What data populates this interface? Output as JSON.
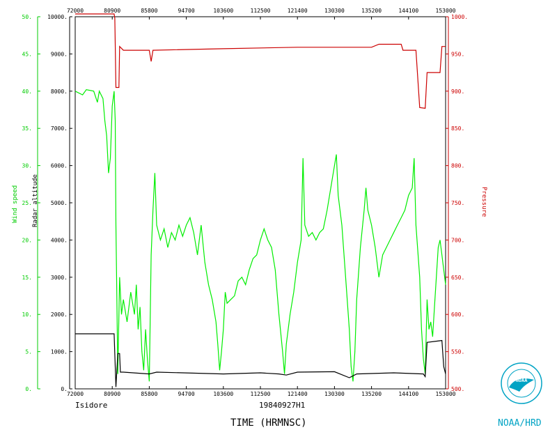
{
  "chart_data": {
    "type": "line",
    "storm_name": "Isidore",
    "flight_id": "19840927H1",
    "xlabel": "TIME (HRMNSC)",
    "logo_text": "NOAA/HRD",
    "logo_seal_text": "NOAA",
    "x_ticks_bottom": [
      "72000",
      "80900",
      "85800",
      "94700",
      "103600",
      "112500",
      "121400",
      "130300",
      "135200",
      "144100",
      "153000"
    ],
    "x_ticks_top": [
      "72000",
      "80900",
      "85800",
      "94700",
      "103600",
      "112500",
      "121400",
      "130300",
      "135200",
      "144100",
      "153000"
    ],
    "axes": {
      "wind_speed": {
        "label": "Wind speed",
        "range": [
          0,
          50
        ],
        "ticks": [
          "0.",
          "5.",
          "10.",
          "15.",
          "20.",
          "25.",
          "30.",
          "35.",
          "40.",
          "45.",
          "50."
        ]
      },
      "radar_altitude": {
        "label": "Radar altitude",
        "range": [
          0,
          10000
        ],
        "ticks": [
          "0.",
          "1000.",
          "2000.",
          "3000.",
          "4000.",
          "5000.",
          "6000.",
          "7000.",
          "8000.",
          "9000.",
          "10000."
        ]
      },
      "pressure": {
        "label": "Pressure",
        "range": [
          500,
          1000
        ],
        "ticks": [
          "500.",
          "550.",
          "600.",
          "650.",
          "700.",
          "750.",
          "800.",
          "850.",
          "900.",
          "950.",
          "1000."
        ]
      }
    },
    "series": [
      {
        "name": "Wind speed",
        "color": "#00ee00",
        "axis": "wind_speed",
        "points": [
          [
            0.0,
            40.0
          ],
          [
            0.02,
            39.5
          ],
          [
            0.03,
            40.2
          ],
          [
            0.05,
            40.0
          ],
          [
            0.06,
            38.5
          ],
          [
            0.065,
            40.0
          ],
          [
            0.075,
            39.0
          ],
          [
            0.08,
            36.0
          ],
          [
            0.085,
            34.0
          ],
          [
            0.09,
            29.0
          ],
          [
            0.095,
            31.0
          ],
          [
            0.1,
            38.0
          ],
          [
            0.105,
            40.0
          ],
          [
            0.108,
            36.0
          ],
          [
            0.11,
            22.0
          ],
          [
            0.115,
            2.0
          ],
          [
            0.118,
            10.0
          ],
          [
            0.12,
            15.0
          ],
          [
            0.125,
            10.0
          ],
          [
            0.13,
            12.0
          ],
          [
            0.14,
            9.0
          ],
          [
            0.15,
            13.0
          ],
          [
            0.16,
            10.0
          ],
          [
            0.165,
            14.0
          ],
          [
            0.17,
            8.0
          ],
          [
            0.175,
            11.0
          ],
          [
            0.18,
            5.0
          ],
          [
            0.185,
            2.5
          ],
          [
            0.19,
            8.0
          ],
          [
            0.195,
            4.0
          ],
          [
            0.2,
            1.0
          ],
          [
            0.205,
            18.0
          ],
          [
            0.21,
            24.0
          ],
          [
            0.215,
            29.0
          ],
          [
            0.22,
            22.0
          ],
          [
            0.23,
            20.0
          ],
          [
            0.24,
            21.5
          ],
          [
            0.25,
            19.0
          ],
          [
            0.26,
            21.0
          ],
          [
            0.27,
            20.0
          ],
          [
            0.28,
            22.0
          ],
          [
            0.29,
            20.5
          ],
          [
            0.3,
            22.0
          ],
          [
            0.31,
            23.0
          ],
          [
            0.32,
            21.0
          ],
          [
            0.33,
            18.0
          ],
          [
            0.34,
            22.0
          ],
          [
            0.35,
            17.0
          ],
          [
            0.36,
            14.0
          ],
          [
            0.37,
            12.0
          ],
          [
            0.38,
            9.0
          ],
          [
            0.385,
            6.0
          ],
          [
            0.39,
            2.5
          ],
          [
            0.395,
            5.0
          ],
          [
            0.4,
            8.0
          ],
          [
            0.405,
            13.0
          ],
          [
            0.41,
            11.5
          ],
          [
            0.42,
            12.0
          ],
          [
            0.43,
            12.5
          ],
          [
            0.44,
            14.5
          ],
          [
            0.45,
            15.0
          ],
          [
            0.46,
            14.0
          ],
          [
            0.47,
            16.0
          ],
          [
            0.48,
            17.5
          ],
          [
            0.49,
            18.0
          ],
          [
            0.5,
            20.0
          ],
          [
            0.51,
            21.5
          ],
          [
            0.52,
            20.0
          ],
          [
            0.53,
            19.0
          ],
          [
            0.54,
            16.0
          ],
          [
            0.55,
            10.0
          ],
          [
            0.56,
            5.0
          ],
          [
            0.565,
            2.0
          ],
          [
            0.57,
            6.0
          ],
          [
            0.58,
            10.0
          ],
          [
            0.59,
            13.0
          ],
          [
            0.6,
            17.0
          ],
          [
            0.61,
            20.0
          ],
          [
            0.615,
            31.0
          ],
          [
            0.62,
            22.0
          ],
          [
            0.63,
            20.5
          ],
          [
            0.64,
            21.0
          ],
          [
            0.65,
            20.0
          ],
          [
            0.66,
            21.0
          ],
          [
            0.67,
            21.5
          ],
          [
            0.68,
            24.0
          ],
          [
            0.69,
            27.0
          ],
          [
            0.7,
            30.0
          ],
          [
            0.705,
            31.5
          ],
          [
            0.71,
            26.0
          ],
          [
            0.72,
            22.0
          ],
          [
            0.73,
            15.0
          ],
          [
            0.74,
            8.0
          ],
          [
            0.745,
            3.0
          ],
          [
            0.75,
            1.0
          ],
          [
            0.755,
            5.0
          ],
          [
            0.76,
            12.0
          ],
          [
            0.77,
            19.0
          ],
          [
            0.78,
            24.0
          ],
          [
            0.785,
            27.0
          ],
          [
            0.79,
            24.0
          ],
          [
            0.8,
            22.0
          ],
          [
            0.81,
            19.0
          ],
          [
            0.82,
            15.0
          ],
          [
            0.83,
            18.0
          ],
          [
            0.84,
            19.0
          ],
          [
            0.85,
            20.0
          ],
          [
            0.86,
            21.0
          ],
          [
            0.87,
            22.0
          ],
          [
            0.88,
            23.0
          ],
          [
            0.89,
            24.0
          ],
          [
            0.9,
            26.0
          ],
          [
            0.91,
            27.0
          ],
          [
            0.915,
            31.0
          ],
          [
            0.92,
            22.0
          ],
          [
            0.93,
            15.0
          ],
          [
            0.935,
            8.0
          ],
          [
            0.94,
            4.0
          ],
          [
            0.945,
            2.0
          ],
          [
            0.95,
            12.0
          ],
          [
            0.955,
            8.0
          ],
          [
            0.96,
            9.0
          ],
          [
            0.965,
            7.0
          ],
          [
            0.97,
            11.0
          ],
          [
            0.975,
            15.0
          ],
          [
            0.98,
            19.0
          ],
          [
            0.985,
            20.0
          ],
          [
            0.99,
            18.0
          ],
          [
            0.995,
            16.0
          ],
          [
            1.0,
            14.0
          ]
        ]
      },
      {
        "name": "Radar altitude",
        "color": "#000000",
        "axis": "radar_altitude",
        "points": [
          [
            0.0,
            1480
          ],
          [
            0.105,
            1480
          ],
          [
            0.108,
            600
          ],
          [
            0.11,
            50
          ],
          [
            0.115,
            950
          ],
          [
            0.12,
            950
          ],
          [
            0.122,
            450
          ],
          [
            0.13,
            450
          ],
          [
            0.2,
            400
          ],
          [
            0.22,
            450
          ],
          [
            0.4,
            400
          ],
          [
            0.5,
            430
          ],
          [
            0.55,
            400
          ],
          [
            0.57,
            370
          ],
          [
            0.6,
            450
          ],
          [
            0.7,
            460
          ],
          [
            0.74,
            300
          ],
          [
            0.76,
            400
          ],
          [
            0.86,
            430
          ],
          [
            0.94,
            400
          ],
          [
            0.945,
            330
          ],
          [
            0.95,
            1250
          ],
          [
            0.99,
            1300
          ],
          [
            0.995,
            600
          ],
          [
            1.0,
            400
          ]
        ]
      },
      {
        "name": "Pressure",
        "color": "#cc0000",
        "axis": "pressure",
        "points": [
          [
            0.0,
            1005
          ],
          [
            0.105,
            1005
          ],
          [
            0.107,
            998
          ],
          [
            0.11,
            905
          ],
          [
            0.118,
            905
          ],
          [
            0.12,
            960
          ],
          [
            0.13,
            955
          ],
          [
            0.2,
            955
          ],
          [
            0.205,
            940
          ],
          [
            0.21,
            955
          ],
          [
            0.4,
            957
          ],
          [
            0.6,
            959
          ],
          [
            0.8,
            959
          ],
          [
            0.82,
            963
          ],
          [
            0.88,
            963
          ],
          [
            0.885,
            955
          ],
          [
            0.92,
            955
          ],
          [
            0.93,
            878
          ],
          [
            0.945,
            877
          ],
          [
            0.95,
            925
          ],
          [
            0.985,
            925
          ],
          [
            0.99,
            960
          ],
          [
            1.0,
            960
          ]
        ]
      }
    ]
  }
}
